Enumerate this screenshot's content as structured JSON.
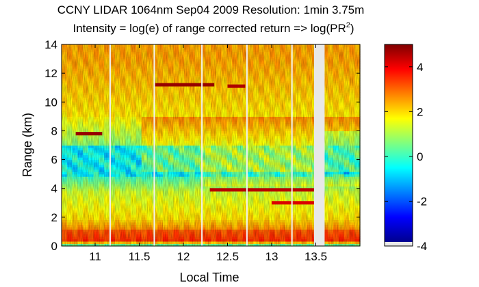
{
  "chart_data": {
    "type": "heatmap",
    "title_line1": "CCNY LIDAR 1064nm Sep04 2009 Resolution: 1min 3.75m",
    "title_line2_prefix": "Intensity = log(e) of range corrected return => log(PR",
    "title_line2_sup": "2",
    "title_line2_suffix": ")",
    "xlabel": "Local Time",
    "ylabel": "Range (km)",
    "xlim": [
      10.62,
      14.0
    ],
    "ylim": [
      0,
      14
    ],
    "xticks": [
      11,
      11.5,
      12,
      12.5,
      13,
      13.5
    ],
    "xtick_labels": [
      "11",
      "11.5",
      "12",
      "12.5",
      "13",
      "13.5"
    ],
    "yticks": [
      0,
      2,
      4,
      6,
      8,
      10,
      12,
      14
    ],
    "ytick_labels": [
      "0",
      "2",
      "4",
      "6",
      "8",
      "10",
      "12",
      "14"
    ],
    "colorbar": {
      "range": [
        -4,
        5
      ],
      "ticks": [
        -4,
        -2,
        0,
        2,
        4
      ],
      "tick_labels": [
        "-4",
        "-2",
        "0",
        "2",
        "4"
      ],
      "colormap": "jet"
    },
    "gap_lines_time": [
      11.17,
      11.67,
      12.21,
      12.72,
      13.23
    ],
    "missing_data_interval": [
      13.48,
      13.6
    ],
    "profile_description": [
      {
        "range_km": [
          0,
          0.2
        ],
        "value": 0.5
      },
      {
        "range_km": [
          0.3,
          1.5
        ],
        "value": 3.5
      },
      {
        "range_km": [
          1.5,
          4
        ],
        "value": 1.0
      },
      {
        "range_km": [
          4,
          7
        ],
        "value": -1.0
      },
      {
        "range_km": [
          7,
          14
        ],
        "value": 2.0
      }
    ],
    "cloud_layers": [
      {
        "t_start": 10.78,
        "t_end": 11.08,
        "z_km": 7.8,
        "value": 4.8
      },
      {
        "t_start": 11.68,
        "t_end": 12.35,
        "z_km": 11.2,
        "value": 4.8
      },
      {
        "t_start": 12.3,
        "t_end": 13.5,
        "z_km": 3.9,
        "value": 4.5
      },
      {
        "t_start": 13.0,
        "t_end": 13.5,
        "z_km": 3.0,
        "value": 4.2
      },
      {
        "t_start": 12.5,
        "t_end": 12.7,
        "z_km": 11.1,
        "value": 4.6
      }
    ]
  }
}
